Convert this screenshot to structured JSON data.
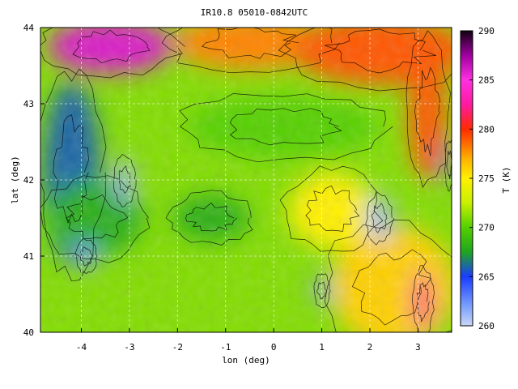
{
  "chart_data": {
    "type": "heatmap",
    "title": "IR10.8 05010-0842UTC",
    "xlabel": "lon (deg)",
    "ylabel": "lat (deg)",
    "xlim": [
      -4.85,
      3.7
    ],
    "ylim": [
      40.0,
      44.0
    ],
    "x_ticks": [
      -4,
      -3,
      -2,
      -1,
      0,
      1,
      2,
      3
    ],
    "y_ticks": [
      40,
      41,
      42,
      43,
      44
    ],
    "grid": true,
    "colorbar": {
      "label": "T (K)",
      "range": [
        260,
        290
      ],
      "ticks": [
        260,
        265,
        270,
        275,
        280,
        285,
        290
      ],
      "stops": [
        {
          "value": 260,
          "color": "#c8d8f8"
        },
        {
          "value": 262,
          "color": "#7aa0ff"
        },
        {
          "value": 265,
          "color": "#1a3cff"
        },
        {
          "value": 267.5,
          "color": "#1fa51f"
        },
        {
          "value": 270,
          "color": "#55d000"
        },
        {
          "value": 272.5,
          "color": "#c8f000"
        },
        {
          "value": 275,
          "color": "#fff000"
        },
        {
          "value": 277,
          "color": "#ffb000"
        },
        {
          "value": 280,
          "color": "#ff2a00"
        },
        {
          "value": 282.5,
          "color": "#ff1aa0"
        },
        {
          "value": 285,
          "color": "#ff30e0"
        },
        {
          "value": 287.5,
          "color": "#a000a0"
        },
        {
          "value": 290,
          "color": "#100010"
        }
      ]
    },
    "field_regions": [
      {
        "lon": -3.4,
        "lat": 43.75,
        "rlon": 1.3,
        "rlat": 0.35,
        "temperature": 286
      },
      {
        "lon": -0.5,
        "lat": 43.8,
        "rlon": 1.6,
        "rlat": 0.35,
        "temperature": 278
      },
      {
        "lon": 2.2,
        "lat": 43.7,
        "rlon": 1.8,
        "rlat": 0.45,
        "temperature": 279
      },
      {
        "lon": 3.2,
        "lat": 42.9,
        "rlon": 0.4,
        "rlat": 0.9,
        "temperature": 279
      },
      {
        "lon": 2.5,
        "lat": 40.6,
        "rlon": 1.3,
        "rlat": 0.8,
        "temperature": 276
      },
      {
        "lon": 1.2,
        "lat": 41.6,
        "rlon": 0.9,
        "rlat": 0.5,
        "temperature": 275
      },
      {
        "lon": -4.2,
        "lat": 42.1,
        "rlon": 0.6,
        "rlat": 1.2,
        "temperature": 266
      },
      {
        "lon": -3.7,
        "lat": 41.5,
        "rlon": 1.0,
        "rlat": 0.5,
        "temperature": 268
      },
      {
        "lon": -3.1,
        "lat": 42.0,
        "rlon": 0.2,
        "rlat": 0.3,
        "temperature": 261
      },
      {
        "lon": -3.9,
        "lat": 41.0,
        "rlon": 0.2,
        "rlat": 0.2,
        "temperature": 262
      },
      {
        "lon": 2.2,
        "lat": 41.5,
        "rlon": 0.25,
        "rlat": 0.3,
        "temperature": 261
      },
      {
        "lon": 1.0,
        "lat": 40.55,
        "rlon": 0.15,
        "rlat": 0.2,
        "temperature": 262
      },
      {
        "lon": -1.3,
        "lat": 41.5,
        "rlon": 0.8,
        "rlat": 0.3,
        "temperature": 268
      },
      {
        "lon": 0.2,
        "lat": 42.7,
        "rlon": 2.0,
        "rlat": 0.4,
        "temperature": 270
      },
      {
        "lon": 3.65,
        "lat": 42.2,
        "rlon": 0.08,
        "rlat": 0.3,
        "temperature": 264
      },
      {
        "lon": 3.1,
        "lat": 40.4,
        "rlon": 0.2,
        "rlat": 0.4,
        "temperature": 282
      }
    ],
    "background_temperature": 271
  }
}
